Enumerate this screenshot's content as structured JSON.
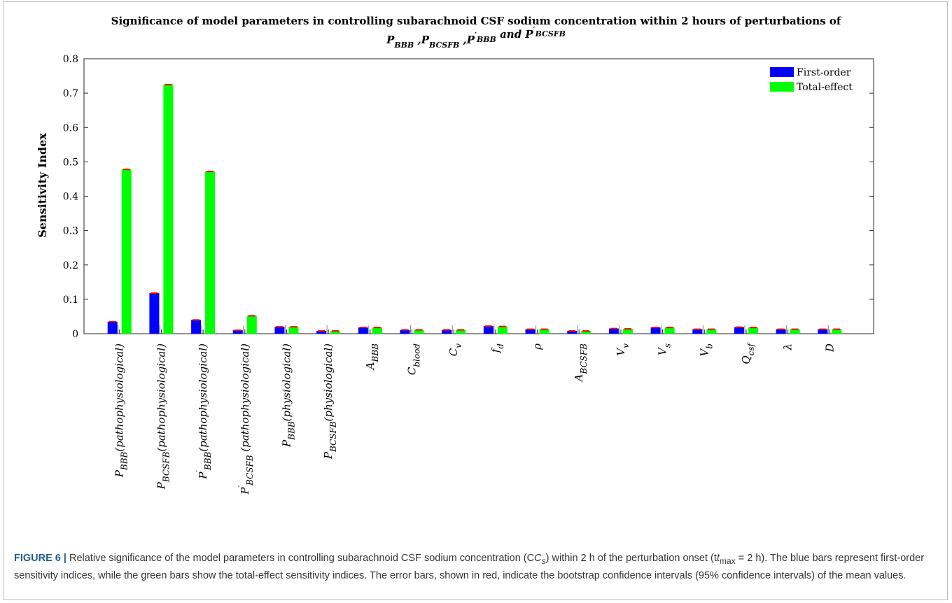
{
  "chart_data": {
    "type": "bar",
    "title_line1": "Significance of model parameters in controlling subarachnoid CSF sodium concentration within 2 hours of perturbations of",
    "title_line2": [
      {
        "base": "P",
        "sub": "BBB",
        "prime": false,
        "lead": "",
        "trail": " ,"
      },
      {
        "base": "P",
        "sub": "BCSFB",
        "prime": false,
        "lead": "",
        "trail": " ,"
      },
      {
        "base": "P",
        "sub": "BBB",
        "prime": true,
        "lead": "",
        "trail": " and "
      },
      {
        "base": "P",
        "sub": "BCSFB",
        "prime": true,
        "lead": "",
        "trail": ""
      }
    ],
    "ylabel": "Sensitivity Index",
    "xlabel": "",
    "ylim": [
      0,
      0.8
    ],
    "yticks": [
      "0",
      "0.1",
      "0.2",
      "0.3",
      "0.4",
      "0.5",
      "0.6",
      "0.7",
      "0.8"
    ],
    "categories": [
      {
        "base": "P",
        "prime": false,
        "sub": "BBB",
        "suffix": "(pathophysiological)"
      },
      {
        "base": "P",
        "prime": false,
        "sub": "BCSFB",
        "suffix": "(pathophysiological)"
      },
      {
        "base": "P",
        "prime": true,
        "sub": "BBB",
        "suffix": "(pathophysiological)"
      },
      {
        "base": "P",
        "prime": true,
        "sub": "BCSFB",
        "suffix": " (pathophysiological)"
      },
      {
        "base": "P",
        "prime": false,
        "sub": "BBB",
        "suffix": "(physiological)"
      },
      {
        "base": "P",
        "prime": false,
        "sub": "BCSFB",
        "suffix": "(physiological)"
      },
      {
        "base": "A",
        "prime": false,
        "sub": "BBB",
        "suffix": ""
      },
      {
        "base": "C",
        "prime": false,
        "sub": "blood",
        "suffix": ""
      },
      {
        "base": "C",
        "prime": false,
        "sub": "v",
        "suffix": ""
      },
      {
        "base": "f",
        "prime": false,
        "sub": "d",
        "suffix": ""
      },
      {
        "base": "ρ",
        "prime": false,
        "sub": "",
        "suffix": ""
      },
      {
        "base": "A",
        "prime": false,
        "sub": "BCSFB",
        "suffix": ""
      },
      {
        "base": "V",
        "prime": false,
        "sub": "v",
        "suffix": ""
      },
      {
        "base": "V",
        "prime": false,
        "sub": "s",
        "suffix": ""
      },
      {
        "base": "V",
        "prime": false,
        "sub": "b",
        "suffix": ""
      },
      {
        "base": "Q",
        "prime": false,
        "sub": "csf",
        "suffix": ""
      },
      {
        "base": "λ",
        "prime": false,
        "sub": "",
        "suffix": ""
      },
      {
        "base": "D",
        "prime": false,
        "sub": "",
        "suffix": ""
      }
    ],
    "series": [
      {
        "name": "First-order",
        "color": "#0000ff",
        "values": [
          0.035,
          0.118,
          0.04,
          0.01,
          0.02,
          0.008,
          0.018,
          0.011,
          0.011,
          0.022,
          0.013,
          0.008,
          0.015,
          0.018,
          0.013,
          0.019,
          0.013,
          0.013
        ]
      },
      {
        "name": "Total-effect",
        "color": "#00ff00",
        "values": [
          0.478,
          0.725,
          0.472,
          0.052,
          0.02,
          0.008,
          0.018,
          0.011,
          0.011,
          0.021,
          0.013,
          0.008,
          0.014,
          0.018,
          0.013,
          0.018,
          0.013,
          0.013
        ]
      }
    ],
    "error_bar_color": "#ff0000",
    "legend_position": "top-right",
    "grid": false
  },
  "caption": {
    "label": "FIGURE 6 |",
    "text": " Relative significance of the model parameters in controlling subarachnoid CSF sodium concentration (C",
    "sub": "s",
    "text2": ") within 2 h of the perturbation onset (t",
    "sub2": "max",
    "text3": " = 2 h). The blue bars represent first-order sensitivity indices, while the green bars show the total-effect sensitivity indices. The error bars, shown in red, indicate the bootstrap confidence intervals (95% confidence intervals) of the mean values."
  }
}
